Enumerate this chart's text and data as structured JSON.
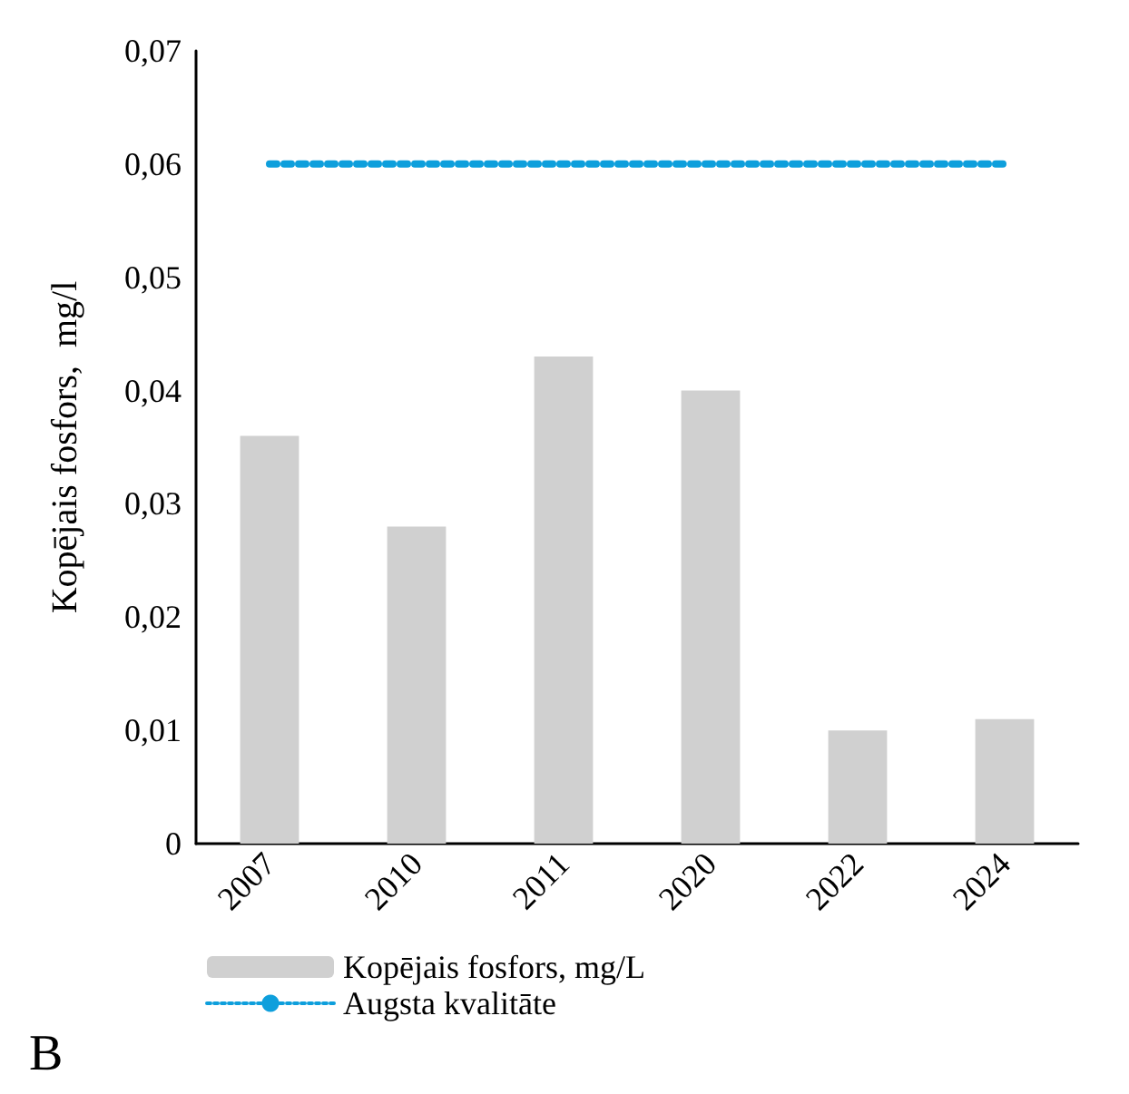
{
  "chart_data": {
    "type": "bar",
    "ylabel": "Kopējais fosfors,  mg/l",
    "categories": [
      "2007",
      "2010",
      "2011",
      "2020",
      "2022",
      "2024"
    ],
    "series": [
      {
        "name": "Kopējais fosfors, mg/L",
        "color": "#d0d0d0",
        "values": [
          0.036,
          0.028,
          0.043,
          0.04,
          0.01,
          0.011
        ]
      },
      {
        "name": "Augsta kvalitāte",
        "type": "line",
        "color": "#0e9fdc",
        "line_style": "dotted",
        "marker": "none",
        "values": [
          0.06,
          0.06,
          0.06,
          0.06,
          0.06,
          0.06
        ]
      }
    ],
    "ylim": [
      0,
      0.07
    ],
    "yticks": [
      {
        "value": 0,
        "label": "0"
      },
      {
        "value": 0.01,
        "label": "0,01"
      },
      {
        "value": 0.02,
        "label": "0,02"
      },
      {
        "value": 0.03,
        "label": "0,03"
      },
      {
        "value": 0.04,
        "label": "0,04"
      },
      {
        "value": 0.05,
        "label": "0,05"
      },
      {
        "value": 0.06,
        "label": "0,06"
      },
      {
        "value": 0.07,
        "label": "0,07"
      }
    ],
    "grid": false,
    "legend": "bottom",
    "annotations": [
      "B"
    ]
  }
}
